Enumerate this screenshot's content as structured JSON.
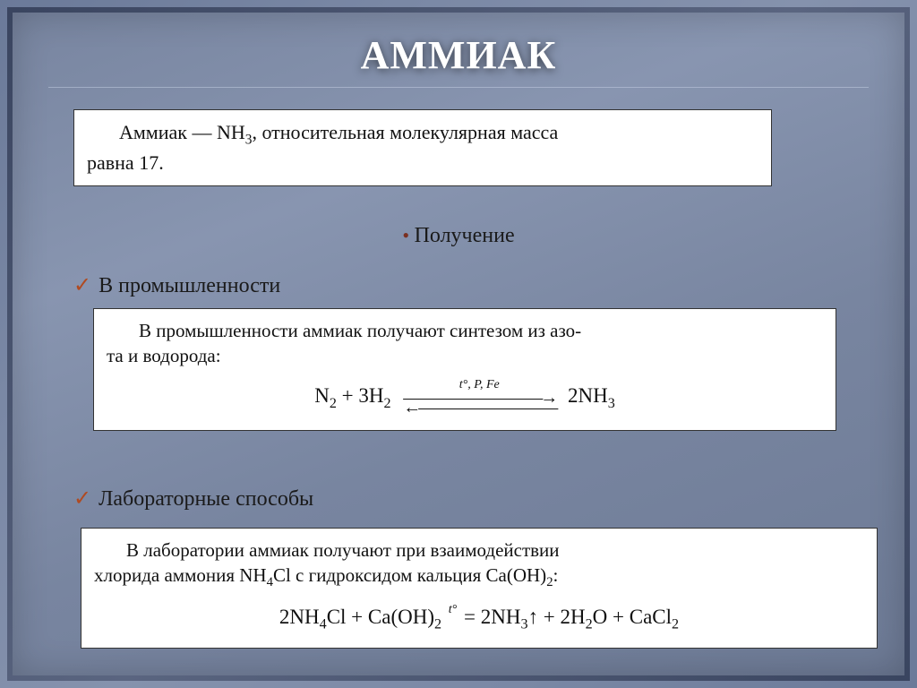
{
  "title": "АММИАК",
  "intro": {
    "line1_prefix": "Аммиак — NH",
    "line1_sub": "3",
    "line1_rest": ", относительная молекулярная масса",
    "line2": "равна 17."
  },
  "section_receive": "Получение",
  "subhead_industry": "В промышленности",
  "industry_box": {
    "line1": "В промышленности аммиак получают синтезом из азо-",
    "line2": "та и водорода:",
    "eq_left_1": "N",
    "eq_left_1s": "2",
    "eq_plus1": " + 3H",
    "eq_left_2s": "2",
    "eq_cond": "t°,  P,  Fe",
    "eq_arrows": "⇌",
    "eq_right": "2NH",
    "eq_right_s": "3"
  },
  "subhead_lab": "Лабораторные способы",
  "lab_box": {
    "line1": "В лаборатории аммиак получают при взаимодействии",
    "line2_a": "хлорида аммония NH",
    "line2_a_s": "4",
    "line2_b": "Cl с гидроксидом кальция Ca(OH)",
    "line2_b_s": "2",
    "line2_c": ":",
    "eq_l1": "2NH",
    "eq_l1s": "4",
    "eq_l2": "Cl + Ca(OH)",
    "eq_l2s": "2",
    "eq_eq_cond": "t°",
    "eq_eq": " = 2NH",
    "eq_r1s": "3",
    "eq_up": "↑ + 2H",
    "eq_r2s": "2",
    "eq_r3": "O + CaCl",
    "eq_r3s": "2"
  },
  "colors": {
    "title_color": "#ffffff",
    "bg_from": "#6b7a99",
    "bg_to": "#8895b0",
    "accent": "#b04a20",
    "box_bg": "#ffffff",
    "text": "#111111"
  }
}
